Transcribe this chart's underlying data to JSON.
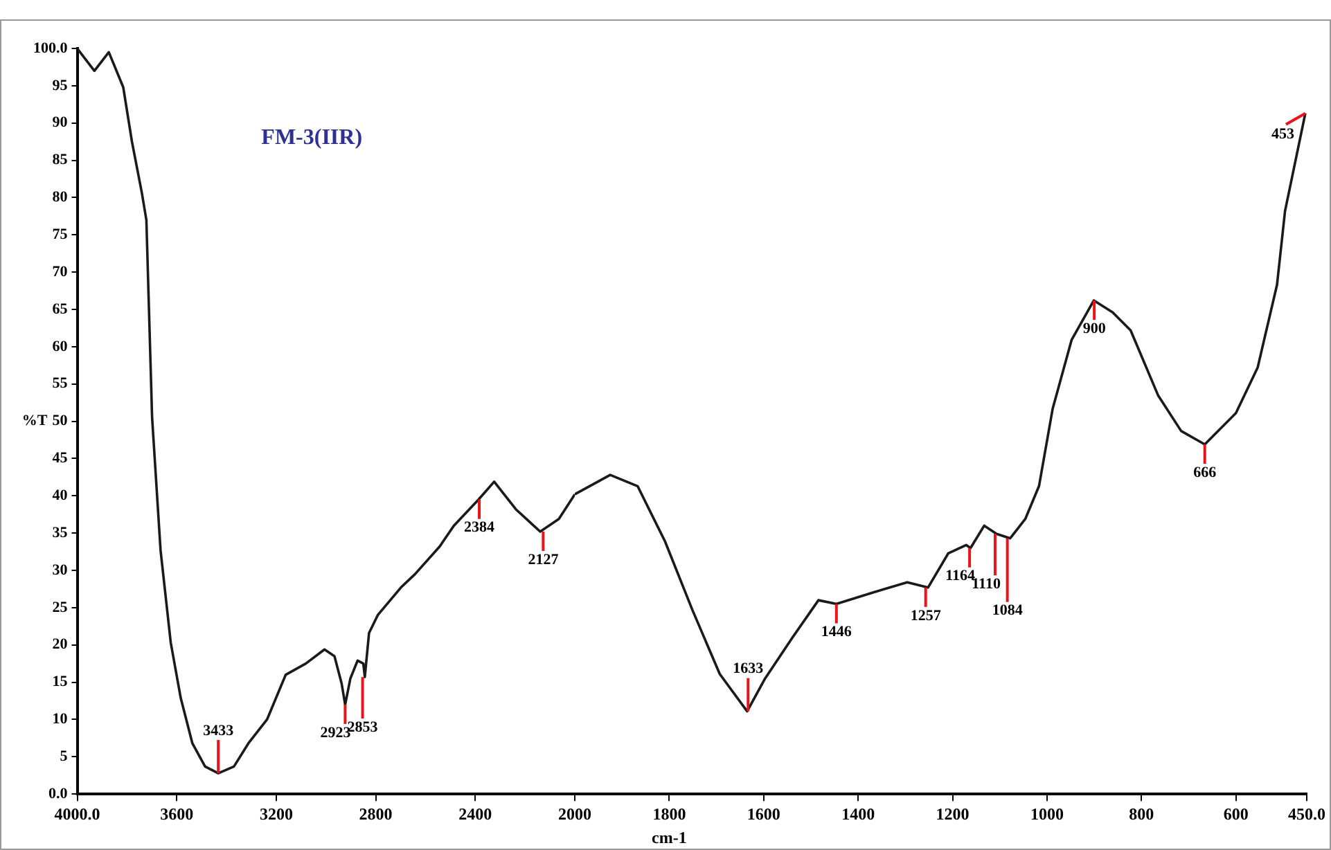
{
  "chart_data": [
    {
      "type": "line",
      "title": "FM-3(IIR)",
      "ylabel": "%T",
      "marker": "none",
      "line_style": "solid",
      "legend": false,
      "xlim": [
        4000,
        2000
      ],
      "xticks": [
        {
          "value": 4000,
          "label": "4000.0"
        },
        3600,
        3200,
        2800,
        2400
      ],
      "ylim": [
        0,
        100
      ],
      "yticks": [
        {
          "value": 0,
          "label": "0.0"
        },
        5,
        10,
        15,
        20,
        25,
        30,
        35,
        40,
        45,
        50,
        55,
        60,
        65,
        70,
        75,
        80,
        85,
        90,
        95,
        {
          "value": 100,
          "label": "100.0"
        }
      ],
      "series": [
        {
          "color": "#1a1a1a",
          "x": [
            4000,
            3931,
            3873,
            3815,
            3780,
            3740,
            3722,
            3699,
            3665,
            3624,
            3584,
            3537,
            3486,
            3433,
            3370,
            3312,
            3237,
            3162,
            3081,
            3006,
            2966,
            2937,
            2923,
            2902,
            2873,
            2850,
            2844,
            2827,
            2792,
            2699,
            2642,
            2543,
            2486,
            2387,
            2324,
            2237,
            2139,
            2064,
            2000
          ],
          "values": [
            100,
            97.0,
            99.5,
            94.8,
            87.5,
            80.6,
            77,
            50.5,
            32.7,
            20.3,
            12.9,
            6.8,
            3.7,
            2.8,
            3.7,
            6.8,
            10.0,
            16.0,
            17.5,
            19.4,
            18.5,
            14.8,
            12.0,
            15.5,
            17.9,
            17.5,
            15.7,
            21.6,
            24.0,
            27.7,
            29.5,
            33.2,
            36.0,
            39.5,
            41.9,
            38.2,
            35.2,
            36.9,
            40.2
          ]
        }
      ],
      "annotations": [
        {
          "text": "3433",
          "x": 3433,
          "y": 2.8
        },
        {
          "text": "2923",
          "x": 2923,
          "y": 12.0
        },
        {
          "text": "2853",
          "x": 2853,
          "y": 15.7
        },
        {
          "text": "2384",
          "x": 2384,
          "y": 39.5
        },
        {
          "text": "2127",
          "x": 2127,
          "y": 35.2
        }
      ]
    },
    {
      "type": "line",
      "xlabel": "cm-1",
      "marker": "none",
      "line_style": "solid",
      "legend": false,
      "tick_labels": "x",
      "xlim": [
        2000,
        450
      ],
      "xticks": [
        2000,
        1800,
        1600,
        1400,
        1200,
        1000,
        800,
        600,
        {
          "value": 450,
          "label": "450.0"
        }
      ],
      "ylim": [
        0,
        100
      ],
      "series": [
        {
          "color": "#1a1a1a",
          "x": [
            2000,
            1925,
            1867,
            1809,
            1751,
            1693,
            1635,
            1597,
            1539,
            1484,
            1446,
            1365,
            1296,
            1252,
            1209,
            1171,
            1162,
            1133,
            1107,
            1078,
            1046,
            1017,
            988,
            948,
            901,
            861,
            823,
            765,
            716,
            666,
            600,
            554,
            513,
            496,
            453
          ],
          "values": [
            40.2,
            42.8,
            41.3,
            33.9,
            24.7,
            16.1,
            11.1,
            15.5,
            21.0,
            26.0,
            25.5,
            27.1,
            28.4,
            27.7,
            32.3,
            33.4,
            33.0,
            36.0,
            34.9,
            34.3,
            36.9,
            41.3,
            51.7,
            60.9,
            66.2,
            64.6,
            62.2,
            53.5,
            48.7,
            46.9,
            51.1,
            57.2,
            68.3,
            78.2,
            91.3
          ]
        }
      ],
      "annotations": [
        {
          "text": "1633",
          "x": 1633,
          "y": 11.1
        },
        {
          "text": "1446",
          "x": 1446,
          "y": 25.5
        },
        {
          "text": "1257",
          "x": 1257,
          "y": 27.7
        },
        {
          "text": "1164",
          "x": 1164,
          "y": 33.0
        },
        {
          "text": "1110",
          "x": 1110,
          "y": 34.9
        },
        {
          "text": "1084",
          "x": 1084,
          "y": 34.3
        },
        {
          "text": "900",
          "x": 900,
          "y": 66.2
        },
        {
          "text": "666",
          "x": 666,
          "y": 46.9
        },
        {
          "text": "453",
          "x": 453,
          "y": 91.3
        }
      ]
    }
  ]
}
